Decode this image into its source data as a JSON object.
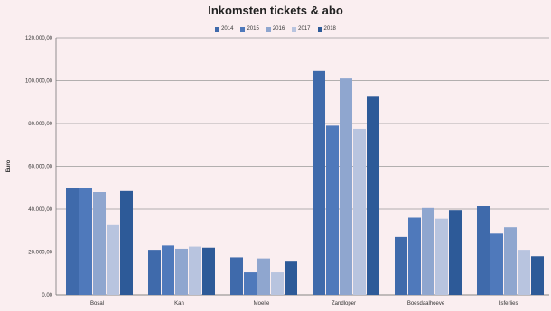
{
  "chart_data": {
    "type": "bar",
    "title": "Inkomsten tickets & abo",
    "ylabel": "Euro",
    "xlabel": "",
    "ylim": [
      0,
      120000
    ],
    "yticks": [
      0,
      20000,
      40000,
      60000,
      80000,
      100000,
      120000
    ],
    "ytick_labels": [
      "0,00",
      "20.000,00",
      "40.000,00",
      "60.000,00",
      "80.000,00",
      "100.000,00",
      "120.000,00"
    ],
    "grid": true,
    "legend_position": "top",
    "categories": [
      "Bosal",
      "Kan",
      "Moelle",
      "Zandloper",
      "Boesdaalhoeve",
      "Ijsferlies"
    ],
    "series": [
      {
        "name": "2014",
        "color": "#3f6aab",
        "values": [
          50000,
          21000,
          17500,
          104500,
          27000,
          41500
        ]
      },
      {
        "name": "2015",
        "color": "#4f79bb",
        "values": [
          50000,
          23000,
          10500,
          79000,
          36000,
          28500
        ]
      },
      {
        "name": "2016",
        "color": "#8fa6cf",
        "values": [
          48000,
          21500,
          17000,
          101000,
          40500,
          31500
        ]
      },
      {
        "name": "2017",
        "color": "#b8c4df",
        "values": [
          32500,
          22500,
          10500,
          77500,
          35500,
          21000
        ]
      },
      {
        "name": "2018",
        "color": "#2d5a98",
        "values": [
          48500,
          22000,
          15500,
          92500,
          39500,
          18000
        ]
      }
    ]
  }
}
